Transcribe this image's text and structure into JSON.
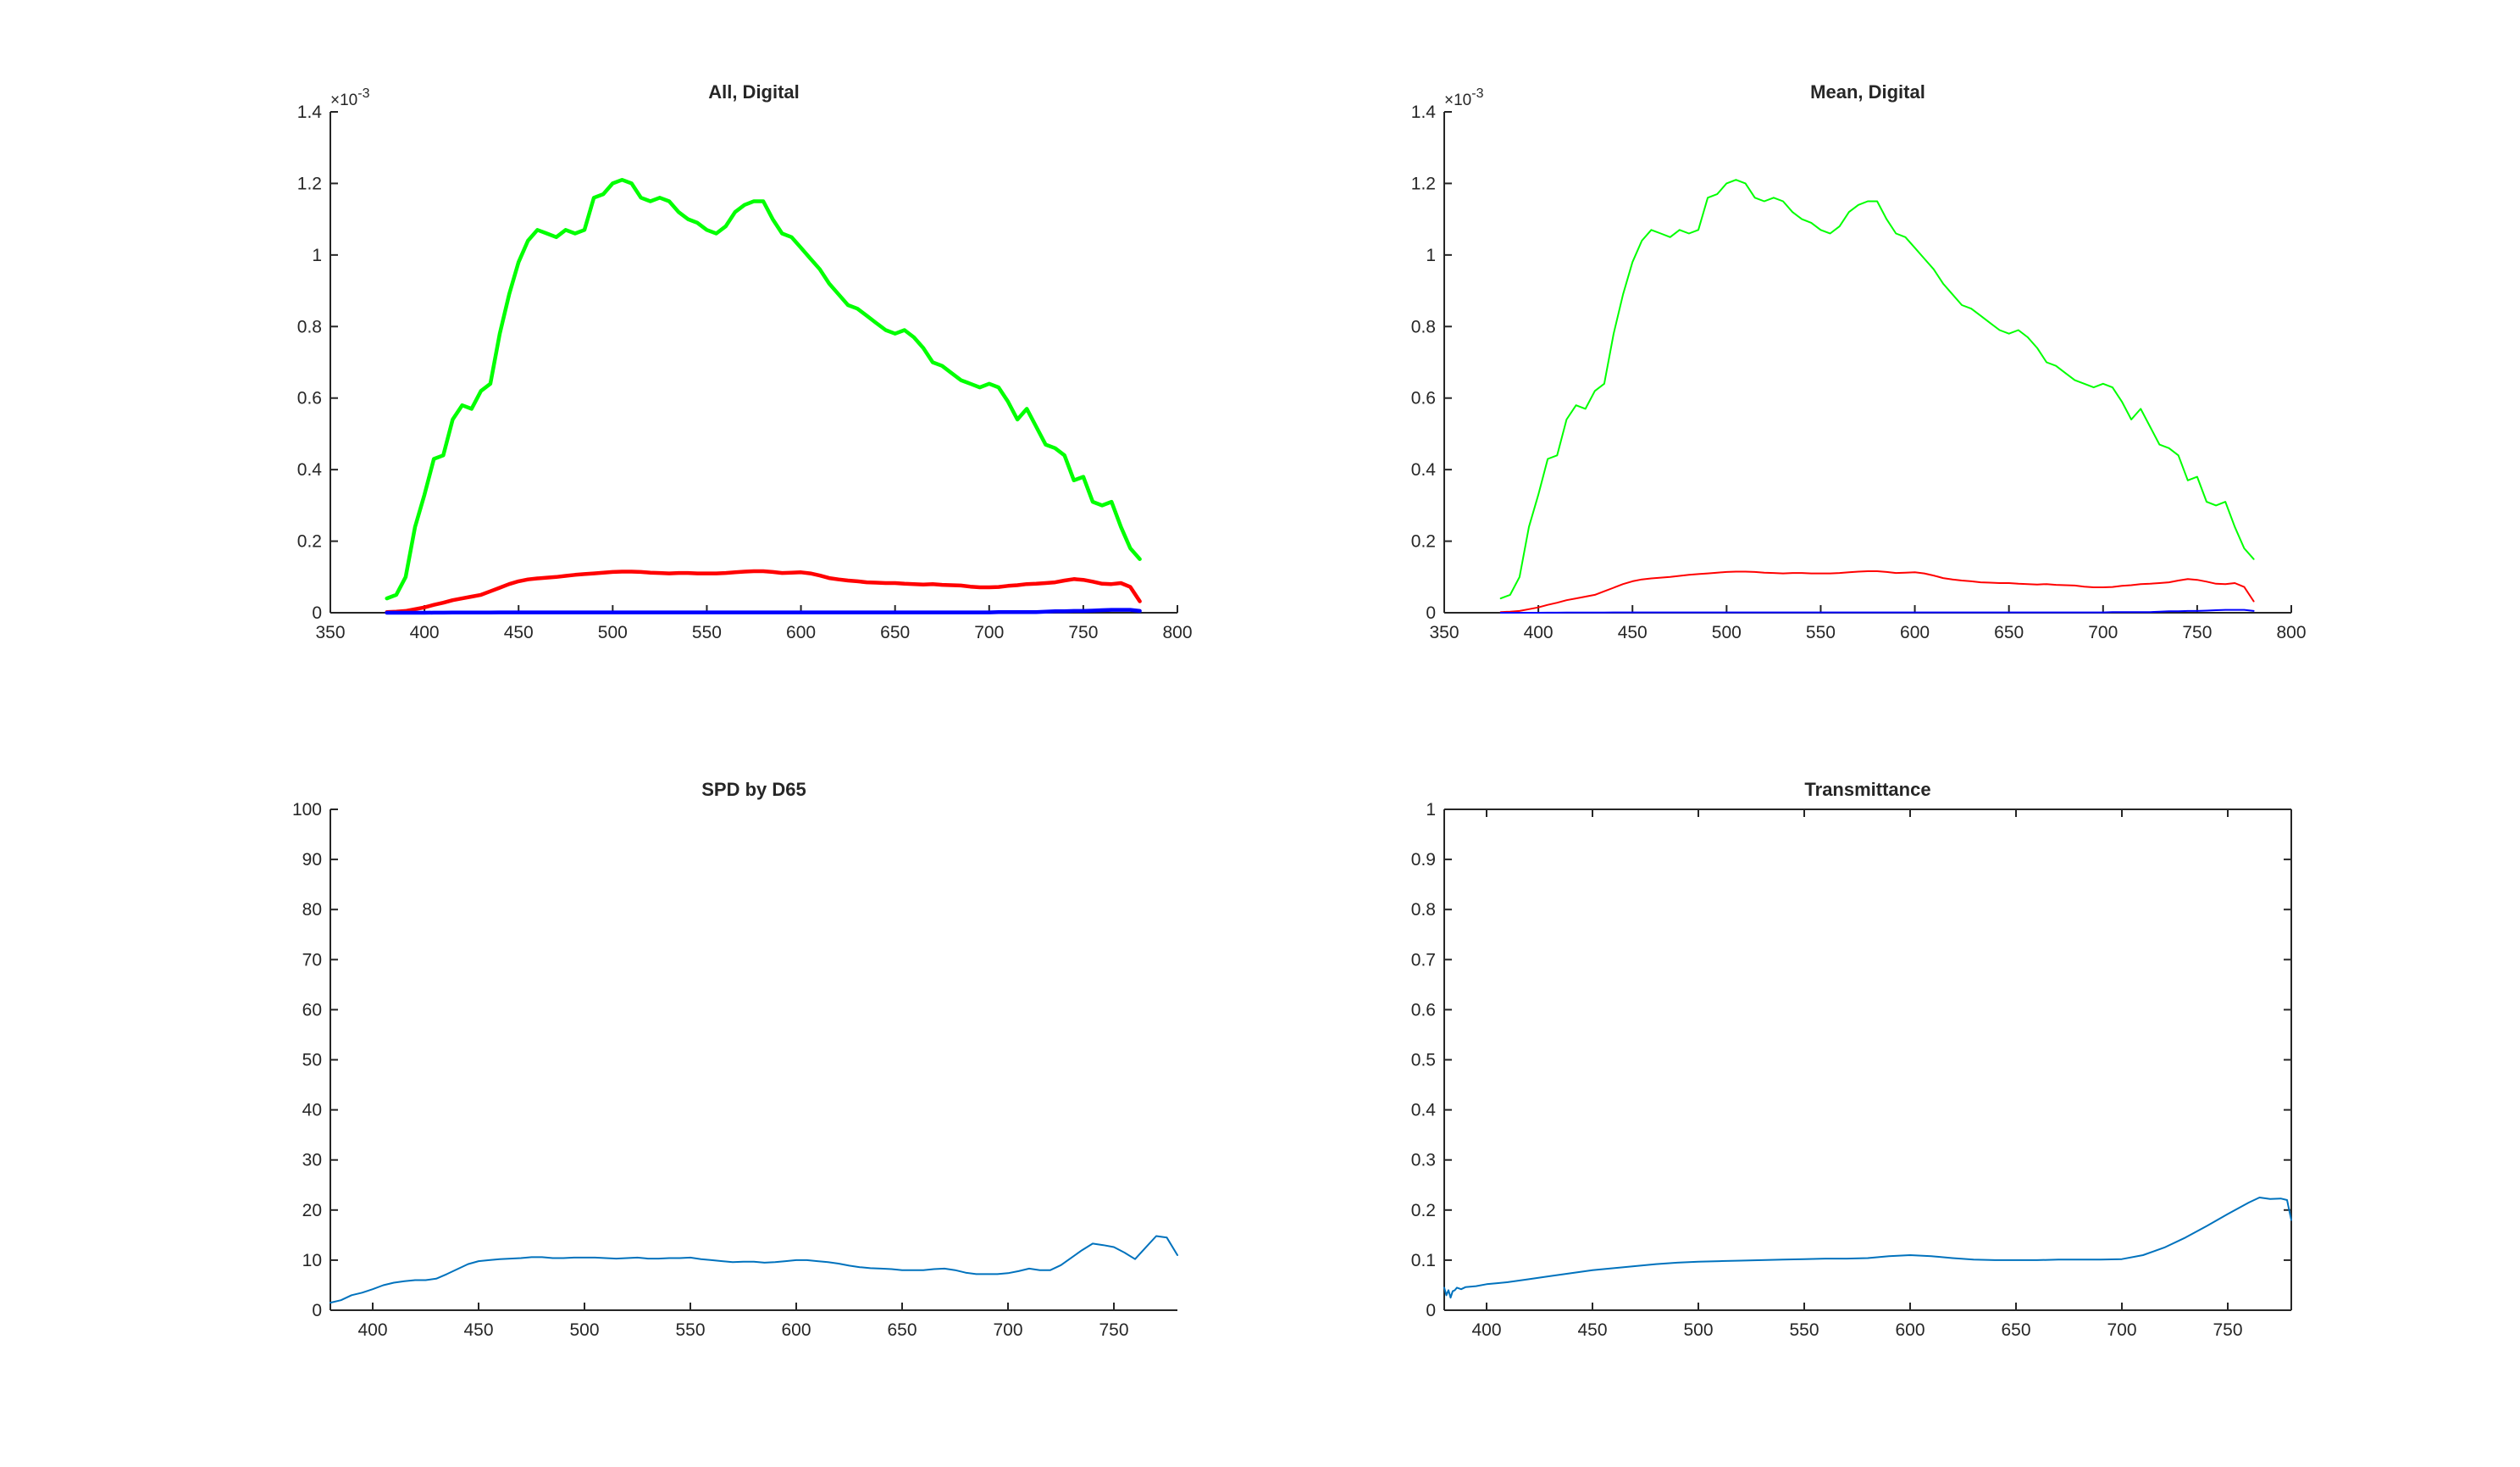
{
  "chart_data": [
    {
      "type": "line",
      "title": "All, Digital",
      "xlabel": "",
      "ylabel": "",
      "xlim": [
        350,
        800
      ],
      "ylim": [
        0,
        0.0014
      ],
      "xticks": [
        "350",
        "400",
        "450",
        "500",
        "550",
        "600",
        "650",
        "700",
        "750",
        "800"
      ],
      "yticks": [
        "0",
        "0.2",
        "0.4",
        "0.6",
        "0.8",
        "1",
        "1.2",
        "1.4"
      ],
      "y_exponent_label": "×10",
      "y_exponent_power": "-3",
      "box": false,
      "grid": false,
      "colors": {
        "green": "#00ff00",
        "red": "#ff0000",
        "blue": "#0000ff"
      },
      "x": [
        380,
        385,
        390,
        395,
        400,
        405,
        410,
        415,
        420,
        425,
        430,
        435,
        440,
        445,
        450,
        455,
        460,
        465,
        470,
        475,
        480,
        485,
        490,
        495,
        500,
        505,
        510,
        515,
        520,
        525,
        530,
        535,
        540,
        545,
        550,
        555,
        560,
        565,
        570,
        575,
        580,
        585,
        590,
        595,
        600,
        605,
        610,
        615,
        620,
        625,
        630,
        635,
        640,
        645,
        650,
        655,
        660,
        665,
        670,
        675,
        680,
        685,
        690,
        695,
        700,
        705,
        710,
        715,
        720,
        725,
        730,
        735,
        740,
        745,
        750,
        755,
        760,
        765,
        770,
        775,
        780
      ],
      "series": [
        {
          "color": "#00ff00",
          "thick": true,
          "values": [
            4e-05,
            5e-05,
            0.0001,
            0.00024,
            0.00033,
            0.00043,
            0.00044,
            0.00054,
            0.00058,
            0.00057,
            0.00062,
            0.00064,
            0.00078,
            0.00089,
            0.00098,
            0.00104,
            0.00107,
            0.00106,
            0.00105,
            0.00107,
            0.00106,
            0.00107,
            0.00116,
            0.00117,
            0.0012,
            0.00121,
            0.0012,
            0.00116,
            0.00115,
            0.00116,
            0.00115,
            0.00112,
            0.0011,
            0.00109,
            0.00107,
            0.00106,
            0.00108,
            0.00112,
            0.00114,
            0.00115,
            0.00115,
            0.0011,
            0.00106,
            0.00105,
            0.00102,
            0.00099,
            0.00096,
            0.00092,
            0.00089,
            0.00086,
            0.00085,
            0.00083,
            0.00081,
            0.00079,
            0.00078,
            0.00079,
            0.00077,
            0.00074,
            0.0007,
            0.00069,
            0.00067,
            0.00065,
            0.00064,
            0.00063,
            0.00064,
            0.00063,
            0.00059,
            0.00054,
            0.00057,
            0.00052,
            0.00047,
            0.00046,
            0.00044,
            0.00037,
            0.00038,
            0.00031,
            0.0003,
            0.00031,
            0.00024,
            0.00018,
            0.00015
          ]
        },
        {
          "color": "#ff0000",
          "thick": true,
          "values": [
            2e-06,
            3e-06,
            5e-06,
            1e-05,
            1.5e-05,
            2.2e-05,
            2.8e-05,
            3.5e-05,
            4e-05,
            4.5e-05,
            5e-05,
            6e-05,
            7e-05,
            8e-05,
            8.8e-05,
            9.3e-05,
            9.6e-05,
            9.8e-05,
            0.0001,
            0.000103,
            0.000106,
            0.000108,
            0.00011,
            0.000112,
            0.000114,
            0.000115,
            0.000115,
            0.000114,
            0.000112,
            0.000111,
            0.00011,
            0.000111,
            0.000111,
            0.00011,
            0.00011,
            0.00011,
            0.000111,
            0.000113,
            0.000115,
            0.000116,
            0.000116,
            0.000114,
            0.000111,
            0.000112,
            0.000113,
            0.00011,
            0.000104,
            9.7e-05,
            9.3e-05,
            9e-05,
            8.8e-05,
            8.5e-05,
            8.4e-05,
            8.3e-05,
            8.3e-05,
            8.1e-05,
            8e-05,
            7.9e-05,
            8e-05,
            7.8e-05,
            7.7e-05,
            7.6e-05,
            7.3e-05,
            7.1e-05,
            7.1e-05,
            7.2e-05,
            7.5e-05,
            7.7e-05,
            8e-05,
            8.1e-05,
            8.3e-05,
            8.5e-05,
            9e-05,
            9.4e-05,
            9.2e-05,
            8.7e-05,
            8.1e-05,
            8e-05,
            8.3e-05,
            7.2e-05,
            3.2e-05
          ]
        },
        {
          "color": "#0000ff",
          "thick": true,
          "values": [
            0,
            0,
            0,
            0,
            1e-07,
            2e-07,
            3e-07,
            4e-07,
            5e-07,
            6e-07,
            7e-07,
            8e-07,
            1e-06,
            1e-06,
            1e-06,
            1e-06,
            1e-06,
            1e-06,
            1e-06,
            1e-06,
            1e-06,
            1e-06,
            1e-06,
            1e-06,
            1e-06,
            1e-06,
            1e-06,
            1e-06,
            1e-06,
            1e-06,
            1e-06,
            1e-06,
            1e-06,
            1e-06,
            1e-06,
            1e-06,
            1e-06,
            1e-06,
            1e-06,
            1e-06,
            1e-06,
            1e-06,
            1e-06,
            1e-06,
            1e-06,
            1e-06,
            1e-06,
            1e-06,
            1e-06,
            1e-06,
            1e-06,
            1e-06,
            1e-06,
            1e-06,
            1e-06,
            1e-06,
            1e-06,
            1e-06,
            1e-06,
            1e-06,
            1e-06,
            1e-06,
            1e-06,
            1e-06,
            1e-06,
            2e-06,
            2e-06,
            2e-06,
            2e-06,
            2e-06,
            3e-06,
            4e-06,
            4e-06,
            5e-06,
            5e-06,
            6e-06,
            7e-06,
            8e-06,
            8e-06,
            8e-06,
            5e-06
          ]
        }
      ]
    },
    {
      "type": "line",
      "title": "Mean, Digital",
      "xlabel": "",
      "ylabel": "",
      "xlim": [
        350,
        800
      ],
      "ylim": [
        0,
        0.0014
      ],
      "xticks": [
        "350",
        "400",
        "450",
        "500",
        "550",
        "600",
        "650",
        "700",
        "750",
        "800"
      ],
      "yticks": [
        "0",
        "0.2",
        "0.4",
        "0.6",
        "0.8",
        "1",
        "1.2",
        "1.4"
      ],
      "y_exponent_label": "×10",
      "y_exponent_power": "-3",
      "box": false,
      "grid": false,
      "x": [
        380,
        385,
        390,
        395,
        400,
        405,
        410,
        415,
        420,
        425,
        430,
        435,
        440,
        445,
        450,
        455,
        460,
        465,
        470,
        475,
        480,
        485,
        490,
        495,
        500,
        505,
        510,
        515,
        520,
        525,
        530,
        535,
        540,
        545,
        550,
        555,
        560,
        565,
        570,
        575,
        580,
        585,
        590,
        595,
        600,
        605,
        610,
        615,
        620,
        625,
        630,
        635,
        640,
        645,
        650,
        655,
        660,
        665,
        670,
        675,
        680,
        685,
        690,
        695,
        700,
        705,
        710,
        715,
        720,
        725,
        730,
        735,
        740,
        745,
        750,
        755,
        760,
        765,
        770,
        775,
        780
      ],
      "series": [
        {
          "color": "#00ff00",
          "thick": false,
          "values": [
            4e-05,
            5e-05,
            0.0001,
            0.00024,
            0.00033,
            0.00043,
            0.00044,
            0.00054,
            0.00058,
            0.00057,
            0.00062,
            0.00064,
            0.00078,
            0.00089,
            0.00098,
            0.00104,
            0.00107,
            0.00106,
            0.00105,
            0.00107,
            0.00106,
            0.00107,
            0.00116,
            0.00117,
            0.0012,
            0.00121,
            0.0012,
            0.00116,
            0.00115,
            0.00116,
            0.00115,
            0.00112,
            0.0011,
            0.00109,
            0.00107,
            0.00106,
            0.00108,
            0.00112,
            0.00114,
            0.00115,
            0.00115,
            0.0011,
            0.00106,
            0.00105,
            0.00102,
            0.00099,
            0.00096,
            0.00092,
            0.00089,
            0.00086,
            0.00085,
            0.00083,
            0.00081,
            0.00079,
            0.00078,
            0.00079,
            0.00077,
            0.00074,
            0.0007,
            0.00069,
            0.00067,
            0.00065,
            0.00064,
            0.00063,
            0.00064,
            0.00063,
            0.00059,
            0.00054,
            0.00057,
            0.00052,
            0.00047,
            0.00046,
            0.00044,
            0.00037,
            0.00038,
            0.00031,
            0.0003,
            0.00031,
            0.00024,
            0.00018,
            0.00015
          ]
        },
        {
          "color": "#ff0000",
          "thick": false,
          "values": [
            2e-06,
            3e-06,
            5e-06,
            1e-05,
            1.5e-05,
            2.2e-05,
            2.8e-05,
            3.5e-05,
            4e-05,
            4.5e-05,
            5e-05,
            6e-05,
            7e-05,
            8e-05,
            8.8e-05,
            9.3e-05,
            9.6e-05,
            9.8e-05,
            0.0001,
            0.000103,
            0.000106,
            0.000108,
            0.00011,
            0.000112,
            0.000114,
            0.000115,
            0.000115,
            0.000114,
            0.000112,
            0.000111,
            0.00011,
            0.000111,
            0.000111,
            0.00011,
            0.00011,
            0.00011,
            0.000111,
            0.000113,
            0.000115,
            0.000116,
            0.000116,
            0.000114,
            0.000111,
            0.000112,
            0.000113,
            0.00011,
            0.000104,
            9.7e-05,
            9.3e-05,
            9e-05,
            8.8e-05,
            8.5e-05,
            8.4e-05,
            8.3e-05,
            8.3e-05,
            8.1e-05,
            8e-05,
            7.9e-05,
            8e-05,
            7.8e-05,
            7.7e-05,
            7.6e-05,
            7.3e-05,
            7.1e-05,
            7.1e-05,
            7.2e-05,
            7.5e-05,
            7.7e-05,
            8e-05,
            8.1e-05,
            8.3e-05,
            8.5e-05,
            9e-05,
            9.4e-05,
            9.2e-05,
            8.7e-05,
            8.1e-05,
            8e-05,
            8.3e-05,
            7.2e-05,
            3.2e-05
          ]
        },
        {
          "color": "#0000ff",
          "thick": false,
          "values": [
            0,
            0,
            0,
            0,
            1e-07,
            2e-07,
            3e-07,
            4e-07,
            5e-07,
            6e-07,
            7e-07,
            8e-07,
            1e-06,
            1e-06,
            1e-06,
            1e-06,
            1e-06,
            1e-06,
            1e-06,
            1e-06,
            1e-06,
            1e-06,
            1e-06,
            1e-06,
            1e-06,
            1e-06,
            1e-06,
            1e-06,
            1e-06,
            1e-06,
            1e-06,
            1e-06,
            1e-06,
            1e-06,
            1e-06,
            1e-06,
            1e-06,
            1e-06,
            1e-06,
            1e-06,
            1e-06,
            1e-06,
            1e-06,
            1e-06,
            1e-06,
            1e-06,
            1e-06,
            1e-06,
            1e-06,
            1e-06,
            1e-06,
            1e-06,
            1e-06,
            1e-06,
            1e-06,
            1e-06,
            1e-06,
            1e-06,
            1e-06,
            1e-06,
            1e-06,
            1e-06,
            1e-06,
            1e-06,
            1e-06,
            2e-06,
            2e-06,
            2e-06,
            2e-06,
            2e-06,
            3e-06,
            4e-06,
            4e-06,
            5e-06,
            5e-06,
            6e-06,
            7e-06,
            8e-06,
            8e-06,
            8e-06,
            5e-06
          ]
        }
      ]
    },
    {
      "type": "line",
      "title": "SPD by D65",
      "xlabel": "",
      "ylabel": "",
      "xlim": [
        380,
        780
      ],
      "ylim": [
        0,
        100
      ],
      "xticks": [
        "400",
        "450",
        "500",
        "550",
        "600",
        "650",
        "700",
        "750"
      ],
      "yticks": [
        "0",
        "10",
        "20",
        "30",
        "40",
        "50",
        "60",
        "70",
        "80",
        "90",
        "100"
      ],
      "box": false,
      "grid": false,
      "x": [
        380,
        385,
        390,
        395,
        400,
        405,
        410,
        415,
        420,
        425,
        430,
        435,
        440,
        445,
        450,
        455,
        460,
        465,
        470,
        475,
        480,
        485,
        490,
        495,
        500,
        505,
        510,
        515,
        520,
        525,
        530,
        535,
        540,
        545,
        550,
        555,
        560,
        565,
        570,
        575,
        580,
        585,
        590,
        595,
        600,
        605,
        610,
        615,
        620,
        625,
        630,
        635,
        640,
        645,
        650,
        655,
        660,
        665,
        670,
        675,
        680,
        685,
        690,
        695,
        700,
        705,
        710,
        715,
        720,
        725,
        730,
        735,
        740,
        745,
        750,
        755,
        760,
        765,
        770,
        775,
        780
      ],
      "series": [
        {
          "color": "#0072bd",
          "thick": false,
          "values": [
            1.5,
            2.0,
            3.0,
            3.5,
            4.2,
            5.0,
            5.5,
            5.8,
            6.0,
            6.0,
            6.3,
            7.2,
            8.2,
            9.2,
            9.8,
            10.0,
            10.2,
            10.3,
            10.4,
            10.6,
            10.6,
            10.4,
            10.4,
            10.5,
            10.5,
            10.5,
            10.4,
            10.3,
            10.4,
            10.5,
            10.3,
            10.3,
            10.4,
            10.4,
            10.5,
            10.2,
            10.0,
            9.8,
            9.6,
            9.7,
            9.7,
            9.5,
            9.6,
            9.8,
            10.0,
            10.0,
            9.8,
            9.6,
            9.3,
            8.9,
            8.6,
            8.4,
            8.3,
            8.2,
            8.0,
            8.0,
            8.0,
            8.2,
            8.3,
            8.0,
            7.5,
            7.2,
            7.2,
            7.2,
            7.4,
            7.8,
            8.3,
            8.0,
            8.0,
            9.0,
            10.5,
            12.0,
            13.3,
            13.0,
            12.6,
            11.5,
            10.2,
            12.5,
            14.8,
            14.5,
            11.0
          ]
        }
      ]
    },
    {
      "type": "line",
      "title": "Transmittance",
      "xlabel": "",
      "ylabel": "",
      "xlim": [
        380,
        780
      ],
      "ylim": [
        0,
        1
      ],
      "xticks": [
        "400",
        "450",
        "500",
        "550",
        "600",
        "650",
        "700",
        "750"
      ],
      "yticks": [
        "0",
        "0.1",
        "0.2",
        "0.3",
        "0.4",
        "0.5",
        "0.6",
        "0.7",
        "0.8",
        "0.9",
        "1"
      ],
      "box": true,
      "grid": false,
      "x": [
        380,
        381,
        382,
        383,
        384,
        385,
        386,
        388,
        390,
        395,
        400,
        405,
        410,
        420,
        430,
        440,
        450,
        460,
        470,
        480,
        490,
        500,
        510,
        520,
        530,
        540,
        550,
        560,
        570,
        580,
        590,
        600,
        610,
        620,
        630,
        640,
        650,
        660,
        670,
        680,
        690,
        700,
        710,
        720,
        730,
        740,
        750,
        760,
        765,
        770,
        775,
        778,
        780
      ],
      "series": [
        {
          "color": "#0072bd",
          "thick": false,
          "values": [
            0.045,
            0.03,
            0.04,
            0.025,
            0.038,
            0.04,
            0.045,
            0.042,
            0.046,
            0.048,
            0.052,
            0.054,
            0.056,
            0.062,
            0.068,
            0.074,
            0.08,
            0.084,
            0.088,
            0.092,
            0.095,
            0.097,
            0.098,
            0.099,
            0.1,
            0.101,
            0.102,
            0.103,
            0.103,
            0.104,
            0.108,
            0.11,
            0.108,
            0.104,
            0.101,
            0.1,
            0.1,
            0.1,
            0.101,
            0.101,
            0.101,
            0.102,
            0.11,
            0.125,
            0.145,
            0.168,
            0.192,
            0.215,
            0.225,
            0.222,
            0.223,
            0.22,
            0.18
          ]
        }
      ]
    }
  ]
}
